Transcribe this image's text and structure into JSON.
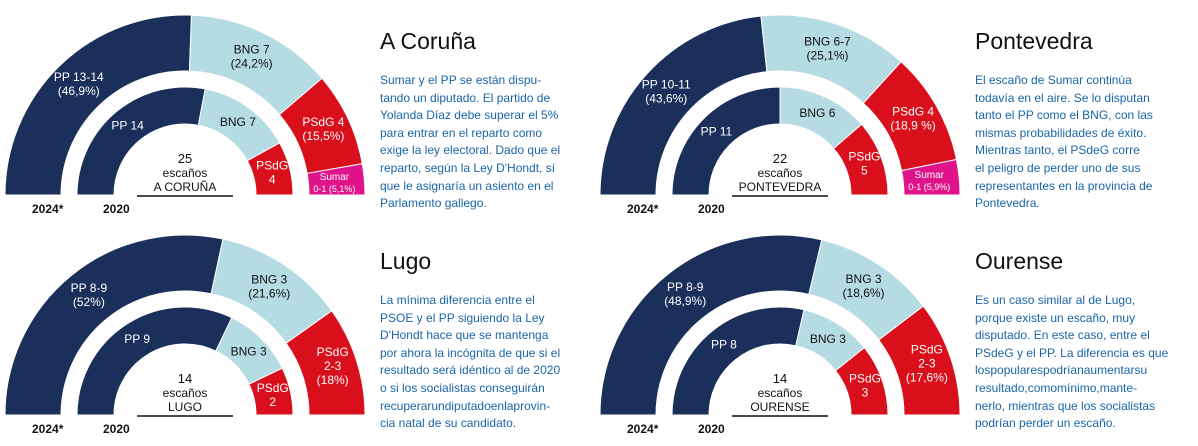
{
  "colors": {
    "pp": "#1b2f5b",
    "bng": "#b5dbe3",
    "psdg": "#d9101c",
    "sumar": "#e0138a",
    "text_blue": "#1a65a8"
  },
  "legend": {
    "outer": "2024*",
    "inner": "2020"
  },
  "chart_data": [
    {
      "type": "semicircle-parliament",
      "province": "A Coruña",
      "title": "A Coruña",
      "seats_total": 25,
      "center_label": {
        "count": "25",
        "unit": "escaños",
        "name": "A CORUÑA"
      },
      "outer_ring": {
        "label": "2024*",
        "series": [
          {
            "party": "PP",
            "name": "PP 13-14",
            "share_label": "(46,9%)",
            "share": 46.9
          },
          {
            "party": "BNG",
            "name": "BNG 7",
            "share_label": "(24,2%)",
            "share": 24.2
          },
          {
            "party": "PSdG",
            "name": "PSdG 4",
            "share_label": "(15,5%)",
            "share": 15.5
          },
          {
            "party": "Sumar",
            "name": "Sumar",
            "share_label": "0-1 (5,1%)",
            "share": 5.1
          }
        ]
      },
      "inner_ring": {
        "label": "2020",
        "series": [
          {
            "party": "PP",
            "name": "PP 14",
            "seats": 14
          },
          {
            "party": "BNG",
            "name": "BNG 7",
            "seats": 7
          },
          {
            "party": "PSdG",
            "name": "PSdG",
            "seats_label": "4",
            "seats": 4
          }
        ]
      },
      "text": [
        "Sumar y el PP se están dispu-",
        "tando un diputado. El partido de",
        "Yolanda Díaz debe superar el 5%",
        "para entrar en el reparto como",
        "exige la ley electoral. Dado que el",
        "reparto, según la Ley D'Hondt, sí",
        "que le asignaría un asiento en el",
        "Parlamento gallego."
      ]
    },
    {
      "type": "semicircle-parliament",
      "province": "Pontevedra",
      "title": "Pontevedra",
      "seats_total": 22,
      "center_label": {
        "count": "22",
        "unit": "escaños",
        "name": "PONTEVEDRA"
      },
      "outer_ring": {
        "label": "2024*",
        "series": [
          {
            "party": "PP",
            "name": "PP 10-11",
            "share_label": "(43,6%)",
            "share": 43.6
          },
          {
            "party": "BNG",
            "name": "BNG 6-7",
            "share_label": "(25,1%)",
            "share": 25.1
          },
          {
            "party": "PSdG",
            "name": "PSdG 4",
            "share_label": "(18,9 %)",
            "share": 18.9
          },
          {
            "party": "Sumar",
            "name": "Sumar",
            "share_label": "0-1 (5,9%)",
            "share": 5.9
          }
        ]
      },
      "inner_ring": {
        "label": "2020",
        "series": [
          {
            "party": "PP",
            "name": "PP 11",
            "seats": 11
          },
          {
            "party": "BNG",
            "name": "BNG 6",
            "seats": 6
          },
          {
            "party": "PSdG",
            "name": "PSdG",
            "seats_label": "5",
            "seats": 5
          }
        ]
      },
      "text": [
        "El escaño de Sumar continúa",
        "todavía en el aire. Se lo disputan",
        "tanto el PP como el BNG, con las",
        "mismas probabilidades de éxito.",
        "Mientras tanto, el PSdeG corre",
        "el peligro de perder uno de sus",
        "representantes en la provincia de",
        "Pontevedra."
      ]
    },
    {
      "type": "semicircle-parliament",
      "province": "Lugo",
      "title": "Lugo",
      "seats_total": 14,
      "center_label": {
        "count": "14",
        "unit": "escaños",
        "name": "LUGO"
      },
      "outer_ring": {
        "label": "2024*",
        "series": [
          {
            "party": "PP",
            "name": "PP 8-9",
            "share_label": "(52%)",
            "share": 52
          },
          {
            "party": "BNG",
            "name": "BNG 3",
            "share_label": "(21,6%)",
            "share": 21.6
          },
          {
            "party": "PSdG",
            "name": "PSdG",
            "seats_label": "2-3",
            "share_label": "(18%)",
            "share": 18
          }
        ]
      },
      "inner_ring": {
        "label": "2020",
        "series": [
          {
            "party": "PP",
            "name": "PP 9",
            "seats": 9
          },
          {
            "party": "BNG",
            "name": "BNG 3",
            "seats": 3
          },
          {
            "party": "PSdG",
            "name": "PSdG",
            "seats_label": "2",
            "seats": 2
          }
        ]
      },
      "text": [
        "La mínima diferencia entre el",
        "PSOE y el PP siguiendo la Ley",
        "D'Hondt hace que se mantenga",
        "por ahora la incógnita de que si el",
        "resultado será idéntico al de 2020",
        "o si los socialistas conseguirán",
        "recuperarundiputadoenlaprovin-",
        "cia natal de su candidato."
      ]
    },
    {
      "type": "semicircle-parliament",
      "province": "Ourense",
      "title": "Ourense",
      "seats_total": 14,
      "center_label": {
        "count": "14",
        "unit": "escaños",
        "name": "OURENSE"
      },
      "outer_ring": {
        "label": "2024*",
        "series": [
          {
            "party": "PP",
            "name": "PP 8-9",
            "share_label": "(48,9%)",
            "share": 48.9
          },
          {
            "party": "BNG",
            "name": "BNG 3",
            "share_label": "(18,6%)",
            "share": 18.6
          },
          {
            "party": "PSdG",
            "name": "PSdG",
            "seats_label": "2-3",
            "share_label": "(17,6%)",
            "share": 17.6
          }
        ]
      },
      "inner_ring": {
        "label": "2020",
        "series": [
          {
            "party": "PP",
            "name": "PP 8",
            "seats": 8
          },
          {
            "party": "BNG",
            "name": "BNG 3",
            "seats": 3
          },
          {
            "party": "PSdG",
            "name": "PSdG",
            "seats_label": "3",
            "seats": 3
          }
        ]
      },
      "text": [
        "Es un caso similar al de Lugo,",
        "porque existe un escaño, muy",
        "disputado. En este caso, entre el",
        "PSdeG y el PP. La diferencia es que",
        "lospopularespodríanaumentarsu",
        "resultado,comomínimo,mante-",
        "nerlo, mientras que los socialistas",
        "podrían perder un escaño."
      ]
    }
  ]
}
